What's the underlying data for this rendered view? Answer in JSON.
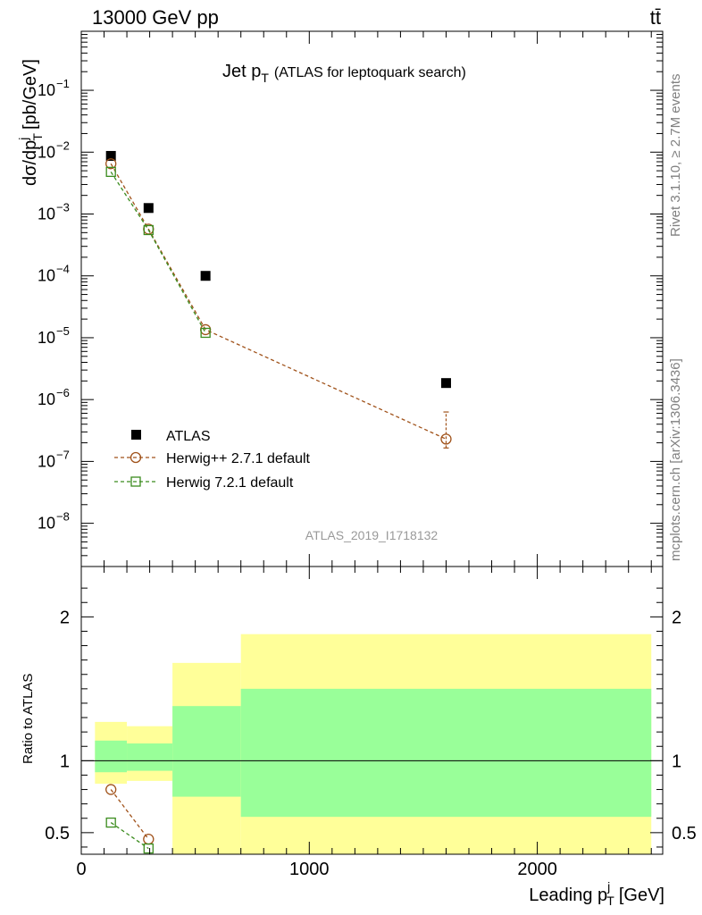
{
  "header": {
    "left": "13000 GeV pp",
    "right": "tt̄"
  },
  "side_labels": {
    "rivet": "Rivet 3.1.10, ≥ 2.7M events",
    "mcplots": "mcplots.cern.ch [arXiv:1306.3436]"
  },
  "chart_data": [
    {
      "type": "scatter",
      "panel": "main",
      "title": "Jet p",
      "title_sub": "T",
      "title_note": "(ATLAS for leptoquark search)",
      "watermark": "ATLAS_2019_I1718132",
      "ylabel": "dσ/dp",
      "ylabel_sup": "j",
      "ylabel_sub": "T",
      "ylabel_unit": "[pb/GeV]",
      "yscale": "log",
      "ylim": [
        2e-09,
        0.9
      ],
      "xlim": [
        0,
        2550
      ],
      "legend_placement": "lower-left",
      "y_tick_labels": [
        {
          "base": "10",
          "exp": "−8",
          "value": 1e-08
        },
        {
          "base": "10",
          "exp": "−7",
          "value": 1e-07
        },
        {
          "base": "10",
          "exp": "−6",
          "value": 1e-06
        },
        {
          "base": "10",
          "exp": "−5",
          "value": 1e-05
        },
        {
          "base": "10",
          "exp": "−4",
          "value": 0.0001
        },
        {
          "base": "10",
          "exp": "−3",
          "value": 0.001
        },
        {
          "base": "10",
          "exp": "−2",
          "value": 0.01
        },
        {
          "base": "10",
          "exp": "−1",
          "value": 0.1
        }
      ],
      "series": [
        {
          "name": "ATLAS",
          "style": "data-square",
          "color": "#000000",
          "x": [
            130,
            295,
            545,
            1600
          ],
          "y": [
            0.0087,
            0.00125,
            0.0001,
            1.85e-06
          ],
          "xerr": [
            [
              70,
              95
            ],
            [
              95,
              105
            ],
            [
              145,
              155
            ],
            [
              900,
              900
            ]
          ]
        },
        {
          "name": "Herwig++ 2.7.1 default",
          "style": "circle-dashed",
          "color": "#a0521a",
          "x": [
            130,
            295,
            545,
            1600
          ],
          "y": [
            0.0065,
            0.00057,
            1.35e-05,
            2.3e-07
          ],
          "yerr_low": [
            0.0065,
            0.00057,
            1.35e-05,
            6.5e-08
          ],
          "yerr_high": [
            0.0065,
            0.00057,
            1.35e-05,
            4e-07
          ]
        },
        {
          "name": "Herwig 7.2.1 default",
          "style": "square-dashed",
          "color": "#3b8c1e",
          "x": [
            130,
            295,
            545
          ],
          "y": [
            0.0048,
            0.00055,
            1.2e-05
          ]
        }
      ]
    },
    {
      "type": "scatter",
      "panel": "ratio",
      "ylabel": "Ratio to ATLAS",
      "xlabel": "Leading p",
      "xlabel_sup": "j",
      "xlabel_sub": "T",
      "xlabel_unit": "[GeV]",
      "xlim": [
        0,
        2550
      ],
      "ylim": [
        0.35,
        2.35
      ],
      "x_ticks": [
        0,
        1000,
        2000
      ],
      "x_tick_labels": [
        "0",
        "1000",
        "2000"
      ],
      "y_ticks": [
        0.5,
        1,
        2
      ],
      "y_tick_labels": [
        "0.5",
        "1",
        "2"
      ],
      "reference_line": 1,
      "bands": [
        {
          "x0": 60,
          "x1": 200,
          "yellow": [
            0.84,
            1.27
          ],
          "green": [
            0.92,
            1.14
          ]
        },
        {
          "x0": 200,
          "x1": 400,
          "yellow": [
            0.86,
            1.24
          ],
          "green": [
            0.93,
            1.12
          ]
        },
        {
          "x0": 400,
          "x1": 700,
          "yellow": [
            0.35,
            1.68
          ],
          "green": [
            0.75,
            1.38
          ]
        },
        {
          "x0": 700,
          "x1": 2500,
          "yellow": [
            0.35,
            1.88
          ],
          "green": [
            0.61,
            1.5
          ]
        }
      ],
      "band_colors": {
        "yellow": "#ffff99",
        "green": "#99ff99"
      },
      "series": [
        {
          "name": "Herwig++ 2.7.1 default",
          "color": "#a0521a",
          "x": [
            130,
            295
          ],
          "y": [
            0.8,
            0.455
          ]
        },
        {
          "name": "Herwig 7.2.1 default",
          "color": "#3b8c1e",
          "x": [
            130,
            295
          ],
          "y": [
            0.57,
            0.39
          ]
        }
      ]
    }
  ]
}
